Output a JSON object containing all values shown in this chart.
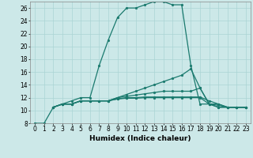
{
  "title": "",
  "xlabel": "Humidex (Indice chaleur)",
  "ylabel": "",
  "background_color": "#cce8e8",
  "line_color": "#1a7a6e",
  "xlim": [
    -0.5,
    23.5
  ],
  "ylim": [
    8,
    27
  ],
  "xticks": [
    0,
    1,
    2,
    3,
    4,
    5,
    6,
    7,
    8,
    9,
    10,
    11,
    12,
    13,
    14,
    15,
    16,
    17,
    18,
    19,
    20,
    21,
    22,
    23
  ],
  "yticks": [
    8,
    10,
    12,
    14,
    16,
    18,
    20,
    22,
    24,
    26
  ],
  "lines": [
    {
      "x": [
        0,
        1,
        2,
        3,
        4,
        5,
        6,
        7,
        8,
        9,
        10,
        11,
        12,
        13,
        14,
        15,
        16,
        17,
        18,
        19,
        20,
        21,
        22,
        23
      ],
      "y": [
        8,
        8,
        10.5,
        11,
        11.5,
        12,
        12,
        17,
        21,
        24.5,
        26,
        26,
        26.5,
        27,
        27,
        26.5,
        26.5,
        17,
        11,
        11,
        11,
        10.5,
        10.5,
        10.5
      ]
    },
    {
      "x": [
        2,
        3,
        4,
        5,
        6,
        7,
        8,
        9,
        10,
        11,
        12,
        13,
        14,
        15,
        16,
        17,
        18,
        19,
        20,
        21,
        22,
        23
      ],
      "y": [
        10.5,
        11,
        11,
        11.5,
        11.5,
        11.5,
        11.5,
        12,
        12.5,
        13,
        13.5,
        14,
        14.5,
        15,
        15.5,
        16.5,
        13.5,
        11,
        10.5,
        10.5,
        10.5,
        10.5
      ]
    },
    {
      "x": [
        2,
        3,
        4,
        5,
        6,
        7,
        8,
        9,
        10,
        11,
        12,
        13,
        14,
        15,
        16,
        17,
        18,
        19,
        20,
        21,
        22,
        23
      ],
      "y": [
        10.5,
        11,
        11,
        11.5,
        11.5,
        11.5,
        11.5,
        12,
        12.2,
        12.4,
        12.6,
        12.8,
        13.0,
        13.0,
        13.0,
        13.0,
        13.5,
        11,
        10.5,
        10.5,
        10.5,
        10.5
      ]
    },
    {
      "x": [
        2,
        3,
        4,
        5,
        6,
        7,
        8,
        9,
        10,
        11,
        12,
        13,
        14,
        15,
        16,
        17,
        18,
        19,
        20,
        21,
        22,
        23
      ],
      "y": [
        10.5,
        11,
        11,
        11.5,
        11.5,
        11.5,
        11.5,
        11.8,
        12.0,
        12.0,
        12.1,
        12.1,
        12.1,
        12.1,
        12.1,
        12.1,
        12.1,
        11.5,
        11.0,
        10.5,
        10.5,
        10.5
      ]
    },
    {
      "x": [
        2,
        3,
        4,
        5,
        6,
        7,
        8,
        9,
        10,
        11,
        12,
        13,
        14,
        15,
        16,
        17,
        18,
        19,
        20,
        21,
        22,
        23
      ],
      "y": [
        10.5,
        11,
        11,
        11.5,
        11.5,
        11.5,
        11.5,
        11.8,
        11.9,
        11.9,
        12.0,
        12.0,
        12.0,
        12.0,
        12.0,
        12.0,
        12.0,
        11.0,
        10.8,
        10.5,
        10.5,
        10.5
      ]
    }
  ],
  "grid_color": "#aad4d4",
  "grid_lw": 0.5,
  "tick_fontsize": 5.5,
  "xlabel_fontsize": 6.5,
  "marker_size": 2.0,
  "line_width": 0.9
}
